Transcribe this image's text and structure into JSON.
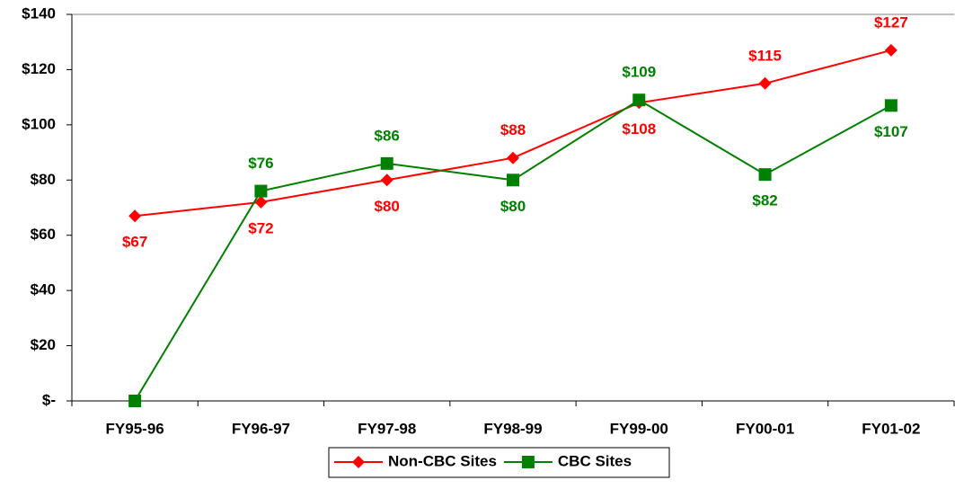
{
  "chart_data": {
    "type": "line",
    "categories": [
      "FY95-96",
      "FY96-97",
      "FY97-98",
      "FY98-99",
      "FY99-00",
      "FY00-01",
      "FY01-02"
    ],
    "series": [
      {
        "name": "Non-CBC Sites",
        "color": "#ff0000",
        "marker": "diamond",
        "values": [
          67,
          72,
          80,
          88,
          108,
          115,
          127
        ],
        "value_labels": [
          "$67",
          "$72",
          "$80",
          "$88",
          "$108",
          "$115",
          "$127"
        ]
      },
      {
        "name": "CBC Sites",
        "color": "#008000",
        "marker": "square",
        "values": [
          0,
          76,
          86,
          80,
          109,
          82,
          107
        ],
        "value_labels": [
          null,
          "$76",
          "$86",
          "$80",
          "$109",
          "$82",
          "$107"
        ]
      }
    ],
    "ylim": [
      0,
      140
    ],
    "yticks": [
      {
        "value": 0,
        "label": "$-"
      },
      {
        "value": 20,
        "label": "$20"
      },
      {
        "value": 40,
        "label": "$40"
      },
      {
        "value": 60,
        "label": "$60"
      },
      {
        "value": 80,
        "label": "$80"
      },
      {
        "value": 100,
        "label": "$100"
      },
      {
        "value": 120,
        "label": "$120"
      },
      {
        "value": 140,
        "label": "$140"
      }
    ],
    "legend": "bottom"
  }
}
